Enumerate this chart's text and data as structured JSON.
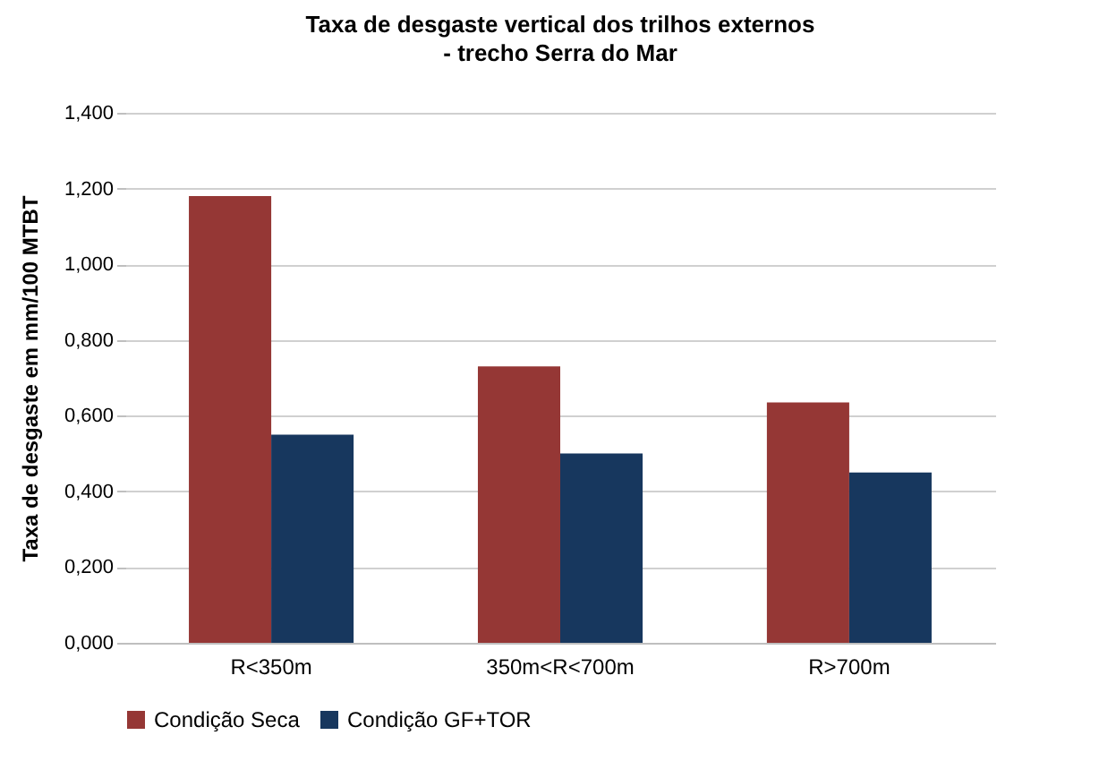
{
  "chart_data": {
    "type": "bar",
    "title": "Taxa de desgaste vertical dos trilhos externos",
    "subtitle": "- trecho Serra do Mar",
    "ylabel": "Taxa de desgaste em mm/100 MTBT",
    "categories": [
      "R<350m",
      "350m<R<700m",
      "R>700m"
    ],
    "series": [
      {
        "name": "Condição Seca",
        "color": "#953735",
        "values": [
          1.18,
          0.73,
          0.635
        ]
      },
      {
        "name": "Condição GF+TOR",
        "color": "#17375e",
        "values": [
          0.55,
          0.5,
          0.45
        ]
      }
    ],
    "ylim": [
      0,
      1.4
    ],
    "yticks": [
      {
        "value": 0,
        "label": "0,000"
      },
      {
        "value": 0.2,
        "label": "0,200"
      },
      {
        "value": 0.4,
        "label": "0,400"
      },
      {
        "value": 0.6,
        "label": "0,600"
      },
      {
        "value": 0.8,
        "label": "0,800"
      },
      {
        "value": 1.0,
        "label": "1,000"
      },
      {
        "value": 1.2,
        "label": "1,200"
      },
      {
        "value": 1.4,
        "label": "1,400"
      }
    ],
    "grid": "y",
    "legend": "bottom"
  }
}
